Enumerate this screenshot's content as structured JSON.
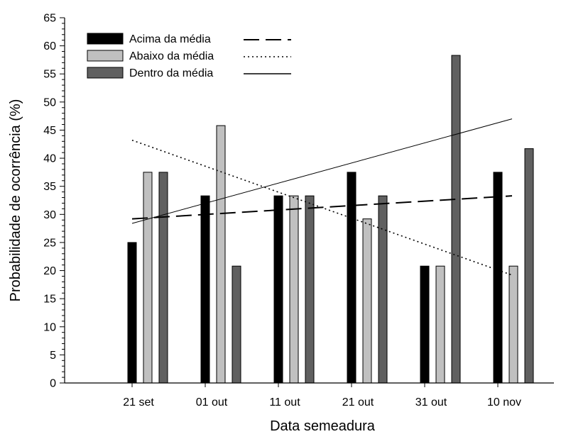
{
  "chart_data": {
    "type": "bar",
    "title": "",
    "xlabel": "Data semeadura",
    "ylabel": "Probabilidade de ocorrência (%)",
    "ylim": [
      0,
      65
    ],
    "yticks": [
      0,
      5,
      10,
      15,
      20,
      25,
      30,
      35,
      40,
      45,
      50,
      55,
      60,
      65
    ],
    "categories": [
      "21 set",
      "01 out",
      "11 out",
      "21 out",
      "31 out",
      "10 nov"
    ],
    "grid": false,
    "legend_position": "top-left",
    "series": [
      {
        "name": "Acima da média",
        "color": "#000000",
        "line_style": "dashed",
        "values": [
          25.0,
          33.3,
          33.3,
          37.5,
          20.8,
          37.5
        ],
        "trend": {
          "start": 29.2,
          "end": 33.3
        }
      },
      {
        "name": "Abaixo da média",
        "color": "#c0c0c0",
        "line_style": "dotted",
        "values": [
          37.5,
          45.8,
          33.3,
          29.2,
          20.8,
          20.8
        ],
        "trend": {
          "start": 43.2,
          "end": 19.2
        }
      },
      {
        "name": "Dentro da média",
        "color": "#606060",
        "line_style": "solid",
        "values": [
          37.5,
          20.8,
          33.3,
          33.3,
          58.3,
          41.7
        ],
        "trend": {
          "start": 28.4,
          "end": 47.0
        }
      }
    ]
  }
}
